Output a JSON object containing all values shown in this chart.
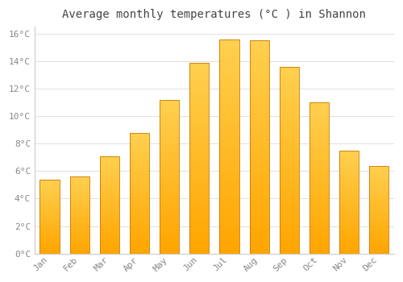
{
  "title": "Average monthly temperatures (°C ) in Shannon",
  "months": [
    "Jan",
    "Feb",
    "Mar",
    "Apr",
    "May",
    "Jun",
    "Jul",
    "Aug",
    "Sep",
    "Oct",
    "Nov",
    "Dec"
  ],
  "values": [
    5.4,
    5.6,
    7.1,
    8.8,
    11.2,
    13.9,
    15.6,
    15.5,
    13.6,
    11.0,
    7.5,
    6.4
  ],
  "bar_color_main": "#FFA500",
  "bar_color_light": "#FFD050",
  "bar_edge_color": "#CC7700",
  "ylim_max": 16,
  "ytick_step": 2,
  "background_color": "#FFFFFF",
  "grid_color": "#E0E0E0",
  "title_fontsize": 10,
  "tick_fontsize": 8,
  "tick_color": "#888888",
  "title_color": "#444444"
}
